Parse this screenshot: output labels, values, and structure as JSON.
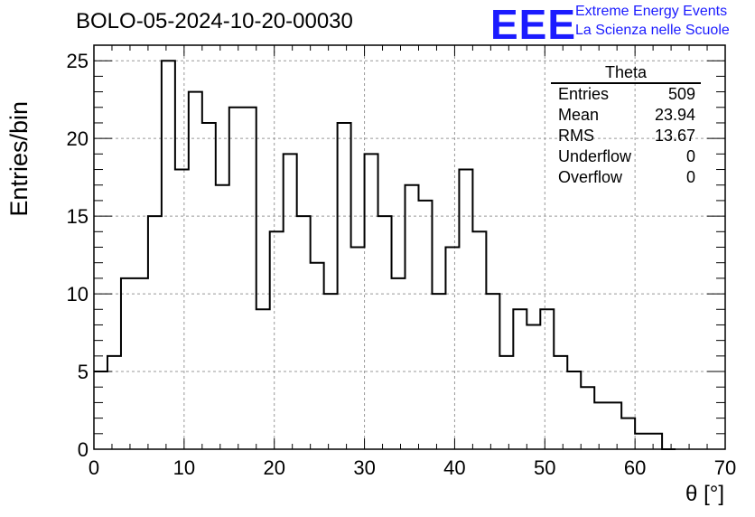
{
  "header": {
    "title": "BOLO-05-2024-10-20-00030"
  },
  "branding": {
    "logo_text": "EEE",
    "line1": "Extreme Energy Events",
    "line2": "La Scienza nelle Scuole",
    "color": "#1b1bff"
  },
  "stats": {
    "title": "Theta",
    "rows": [
      {
        "label": "Entries",
        "value": "509"
      },
      {
        "label": "Mean",
        "value": "23.94"
      },
      {
        "label": "RMS",
        "value": "13.67"
      },
      {
        "label": "Underflow",
        "value": "0"
      },
      {
        "label": "Overflow",
        "value": "0"
      }
    ]
  },
  "chart_data": {
    "type": "bar",
    "xlabel": "θ [°]",
    "ylabel": "Entries/bin",
    "xlim": [
      0,
      70
    ],
    "ylim": [
      0,
      26
    ],
    "bin_width": 1.5,
    "bin_edges_start": 0,
    "values": [
      5,
      6,
      11,
      11,
      15,
      25,
      18,
      23,
      21,
      17,
      22,
      22,
      9,
      14,
      19,
      15,
      12,
      10,
      21,
      13,
      19,
      15,
      11,
      17,
      16,
      10,
      13,
      18,
      14,
      10,
      6,
      9,
      8,
      9,
      6,
      5,
      4,
      3,
      3,
      2,
      1,
      1,
      0
    ],
    "xticks": [
      0,
      10,
      20,
      30,
      40,
      50,
      60,
      70
    ],
    "yticks": [
      0,
      5,
      10,
      15,
      20,
      25
    ],
    "grid": true,
    "line_color": "#000000"
  }
}
